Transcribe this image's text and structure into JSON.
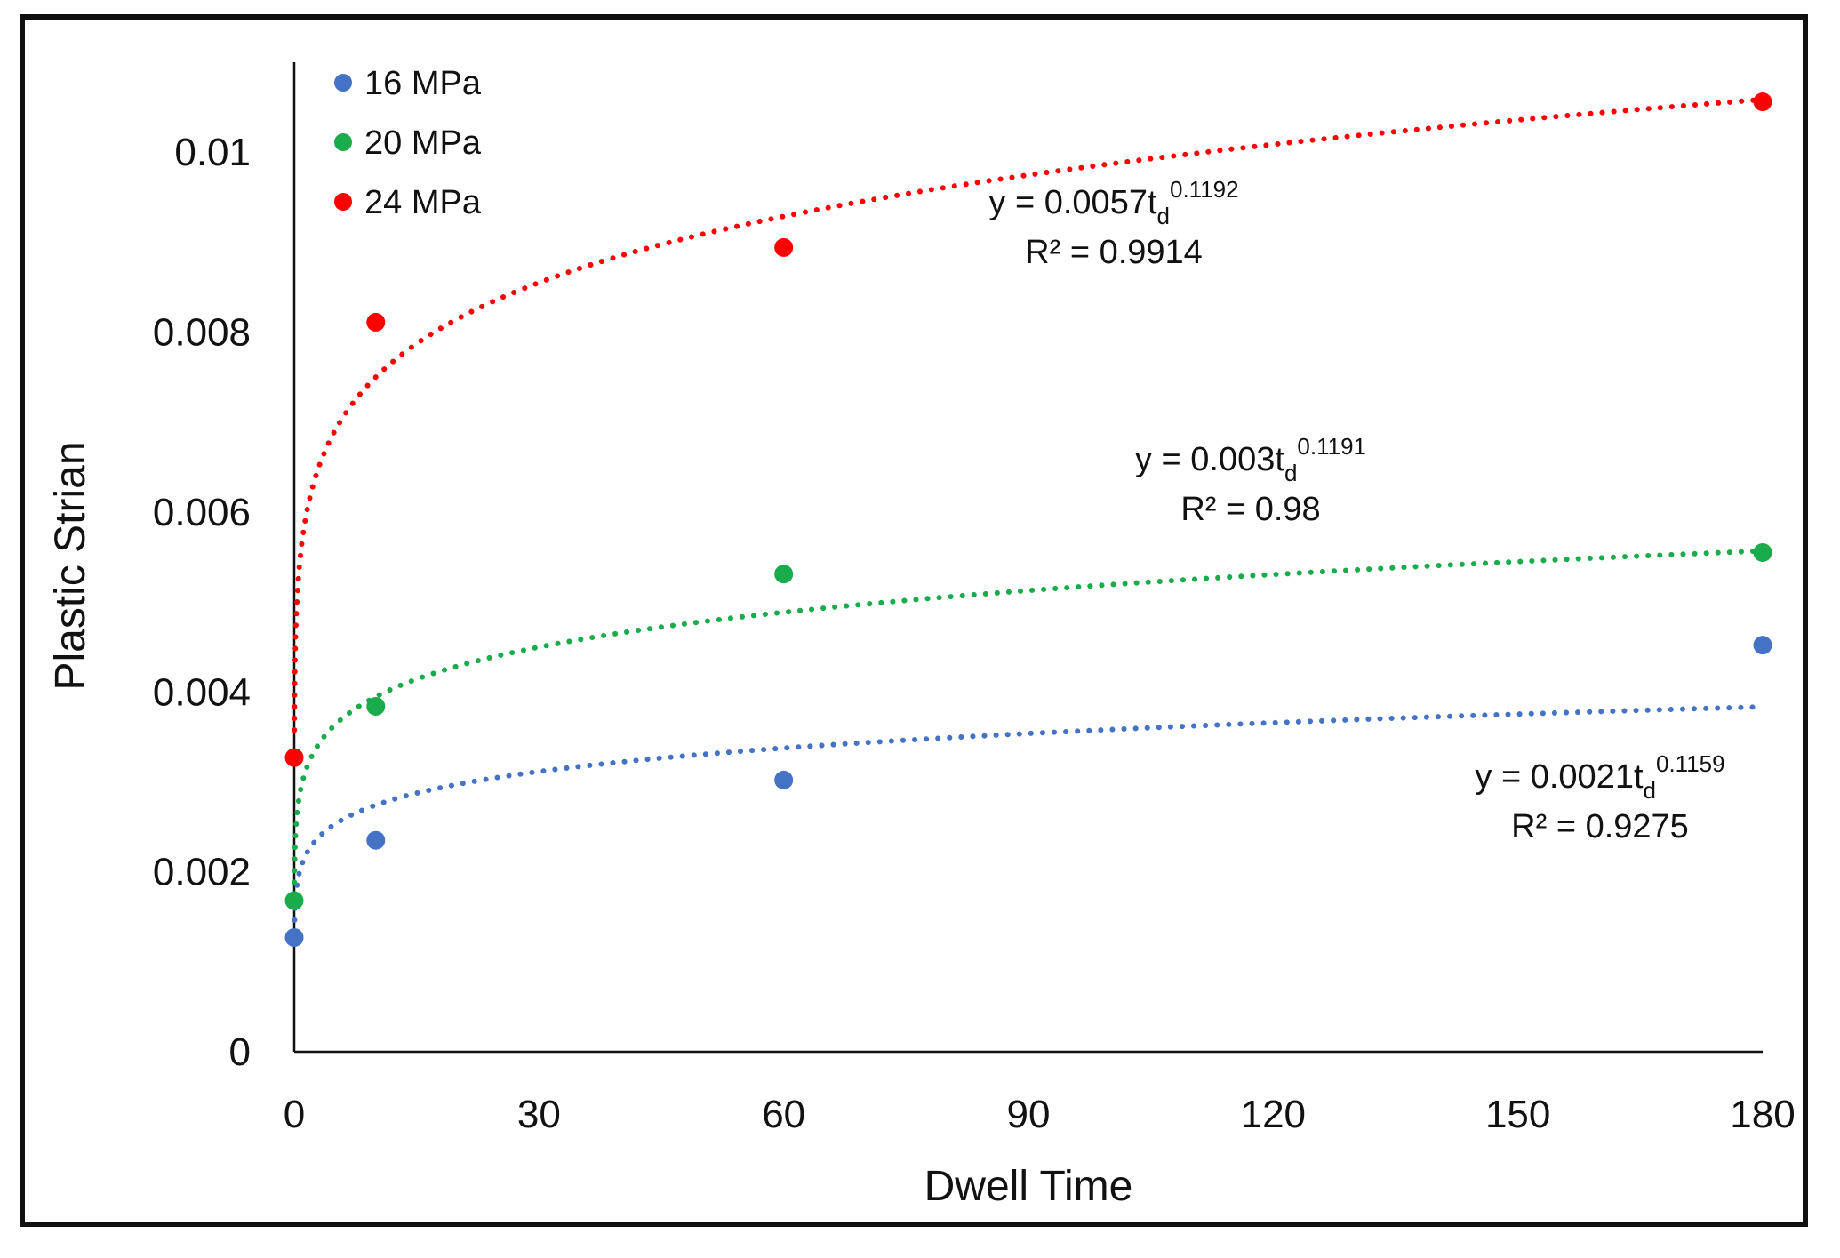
{
  "chart_data": {
    "type": "scatter",
    "xlabel": "Dwell Time",
    "ylabel": "Plastic Strian",
    "xlim": [
      0,
      180
    ],
    "ylim": [
      0,
      0.011
    ],
    "xticks": [
      0,
      30,
      60,
      90,
      120,
      150,
      180
    ],
    "yticks": [
      0,
      0.002,
      0.004,
      0.006,
      0.008,
      0.01
    ],
    "ytick_labels": [
      "0",
      "0.002",
      "0.004",
      "0.006",
      "0.008",
      "0.01"
    ],
    "legend_position": "top-left",
    "series": [
      {
        "name": "16 MPa",
        "color": "#4472c4",
        "x": [
          0,
          10,
          60,
          180
        ],
        "y": [
          0.00127,
          0.00235,
          0.00302,
          0.00452
        ],
        "trend": {
          "a": 0.0021,
          "b": 0.1159,
          "r2": "0.9275"
        },
        "equation": {
          "prefix": "y = 0.0021t",
          "sub": "d",
          "sup": "0.1159",
          "r2_label": "R² = 0.9275"
        }
      },
      {
        "name": "20 MPa",
        "color": "#1aab4b",
        "x": [
          0,
          10,
          60,
          180
        ],
        "y": [
          0.00168,
          0.00384,
          0.00531,
          0.00555
        ],
        "trend": {
          "a": 0.003,
          "b": 0.1191,
          "r2": "0.98"
        },
        "equation": {
          "prefix": "y = 0.003t",
          "sub": "d",
          "sup": "0.1191",
          "r2_label": "R² = 0.98"
        }
      },
      {
        "name": "24 MPa",
        "color": "#ff0000",
        "x": [
          0,
          10,
          60,
          180
        ],
        "y": [
          0.00327,
          0.00811,
          0.00894,
          0.01056
        ],
        "trend": {
          "a": 0.0057,
          "b": 0.1192,
          "r2": "0.9914"
        },
        "equation": {
          "prefix": "y = 0.0057t",
          "sub": "d",
          "sup": "0.1192",
          "r2_label": "R² = 0.9914"
        }
      }
    ]
  }
}
